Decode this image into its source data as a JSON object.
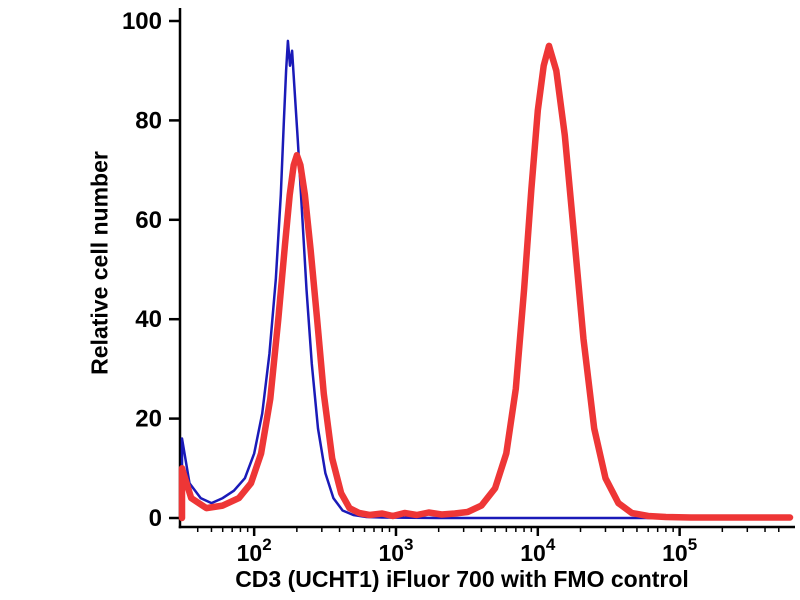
{
  "figure": {
    "xlabel": "CD3 (UCHT1) iFluor 700 with FMO control",
    "ylabel": "Relative cell number"
  },
  "chart_data": {
    "type": "line",
    "title": "",
    "xlabel": "CD3 (UCHT1) iFluor 700 with FMO control",
    "ylabel": "Relative cell number",
    "x_scale": "log",
    "x_range": [
      30,
      600000
    ],
    "y_range": [
      0,
      100
    ],
    "y_ticks": [
      0,
      20,
      40,
      60,
      80,
      100
    ],
    "x_ticks": [
      100,
      1000,
      10000,
      100000
    ],
    "grid": false,
    "legend": "none",
    "axis_color": "#000000",
    "series": [
      {
        "name": "blue-curve",
        "color": "#1a1ab8",
        "stroke_width": 2.5,
        "points": [
          [
            31,
            0
          ],
          [
            31,
            16
          ],
          [
            35,
            7
          ],
          [
            42,
            4
          ],
          [
            50,
            3
          ],
          [
            60,
            4
          ],
          [
            72,
            5.5
          ],
          [
            86,
            8
          ],
          [
            100,
            13
          ],
          [
            114,
            21
          ],
          [
            128,
            33
          ],
          [
            142,
            48
          ],
          [
            154,
            65
          ],
          [
            162,
            80
          ],
          [
            168,
            90
          ],
          [
            173,
            96
          ],
          [
            179,
            91
          ],
          [
            185,
            94
          ],
          [
            192,
            87
          ],
          [
            203,
            76
          ],
          [
            217,
            62
          ],
          [
            234,
            46
          ],
          [
            255,
            31
          ],
          [
            282,
            18
          ],
          [
            318,
            9
          ],
          [
            362,
            4
          ],
          [
            420,
            1.5
          ],
          [
            500,
            0.6
          ],
          [
            620,
            0.2
          ],
          [
            800,
            0.1
          ],
          [
            2000,
            0
          ],
          [
            600000,
            0
          ]
        ]
      },
      {
        "name": "red-curve",
        "color": "#ee3636",
        "stroke_width": 6.5,
        "points": [
          [
            31,
            0
          ],
          [
            31,
            10
          ],
          [
            36,
            4
          ],
          [
            46,
            2
          ],
          [
            60,
            2.5
          ],
          [
            78,
            4
          ],
          [
            95,
            7
          ],
          [
            112,
            13
          ],
          [
            130,
            24
          ],
          [
            148,
            40
          ],
          [
            165,
            55
          ],
          [
            178,
            65
          ],
          [
            190,
            71
          ],
          [
            200,
            73
          ],
          [
            212,
            71
          ],
          [
            228,
            65
          ],
          [
            250,
            54
          ],
          [
            278,
            40
          ],
          [
            310,
            25
          ],
          [
            355,
            12
          ],
          [
            410,
            5
          ],
          [
            470,
            2
          ],
          [
            550,
            1
          ],
          [
            650,
            0.6
          ],
          [
            800,
            0.9
          ],
          [
            950,
            0.4
          ],
          [
            1150,
            1
          ],
          [
            1400,
            0.6
          ],
          [
            1700,
            1.1
          ],
          [
            2100,
            0.7
          ],
          [
            2600,
            0.9
          ],
          [
            3200,
            1.2
          ],
          [
            4000,
            2.5
          ],
          [
            5000,
            6
          ],
          [
            6000,
            13
          ],
          [
            7000,
            26
          ],
          [
            8000,
            46
          ],
          [
            9000,
            66
          ],
          [
            10000,
            82
          ],
          [
            11000,
            91
          ],
          [
            12000,
            95
          ],
          [
            13500,
            90
          ],
          [
            15500,
            77
          ],
          [
            18000,
            57
          ],
          [
            21000,
            36
          ],
          [
            25000,
            18
          ],
          [
            30000,
            8
          ],
          [
            37000,
            3
          ],
          [
            46000,
            1
          ],
          [
            60000,
            0.4
          ],
          [
            80000,
            0.2
          ],
          [
            120000,
            0.1
          ],
          [
            600000,
            0.1
          ]
        ]
      }
    ]
  }
}
